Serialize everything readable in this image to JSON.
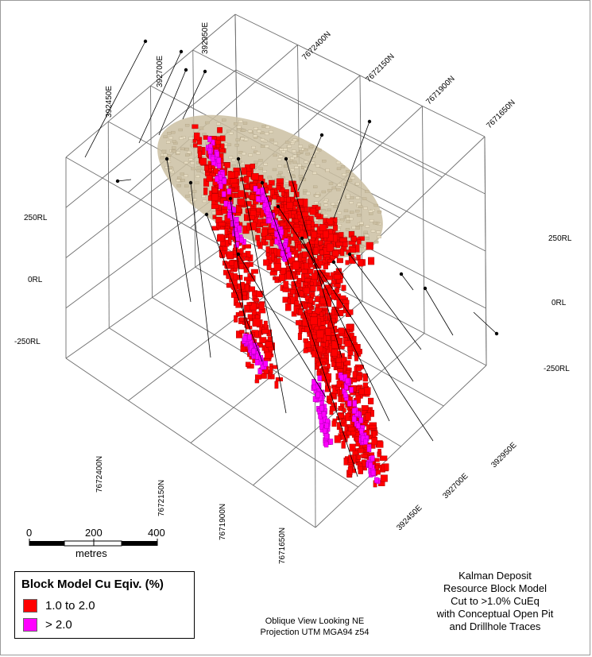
{
  "axis_labels": {
    "easting_top": [
      "392450E",
      "392700E",
      "392950E"
    ],
    "northing_top": [
      "7672400N",
      "7672150N",
      "7671900N",
      "7671650N"
    ],
    "rl_left": [
      "250RL",
      "0RL",
      "-250RL"
    ],
    "rl_right": [
      "250RL",
      "0RL",
      "-250RL"
    ],
    "northing_bottom": [
      "7672400N",
      "7672150N",
      "7671900N",
      "7671650N"
    ],
    "easting_bottom": [
      "392950E",
      "392700E",
      "392450E"
    ]
  },
  "scale_bar": {
    "ticks": [
      "0",
      "200",
      "400"
    ],
    "unit": "metres"
  },
  "legend": {
    "title": "Block Model Cu Eqiv. (%)",
    "items": [
      {
        "label": "1.0 to 2.0",
        "color": "#ff0000"
      },
      {
        "label": "> 2.0",
        "color": "#ff00ff"
      }
    ]
  },
  "view_note": [
    "Oblique View Looking NE",
    "Projection UTM MGA94 z54"
  ],
  "caption": [
    "Kalman Deposit",
    "Resource Block Model",
    "Cut to >1.0% CuEq",
    "with Conceptual Open Pit",
    "and Drillhole Traces"
  ],
  "colors": {
    "grid": "#6e6e6e",
    "pit": "#cbbfa2",
    "pit_light": "#e6dcc2",
    "low_grade": "#ff0000",
    "high_grade": "#ff00ff",
    "drillhole": "#000000"
  }
}
